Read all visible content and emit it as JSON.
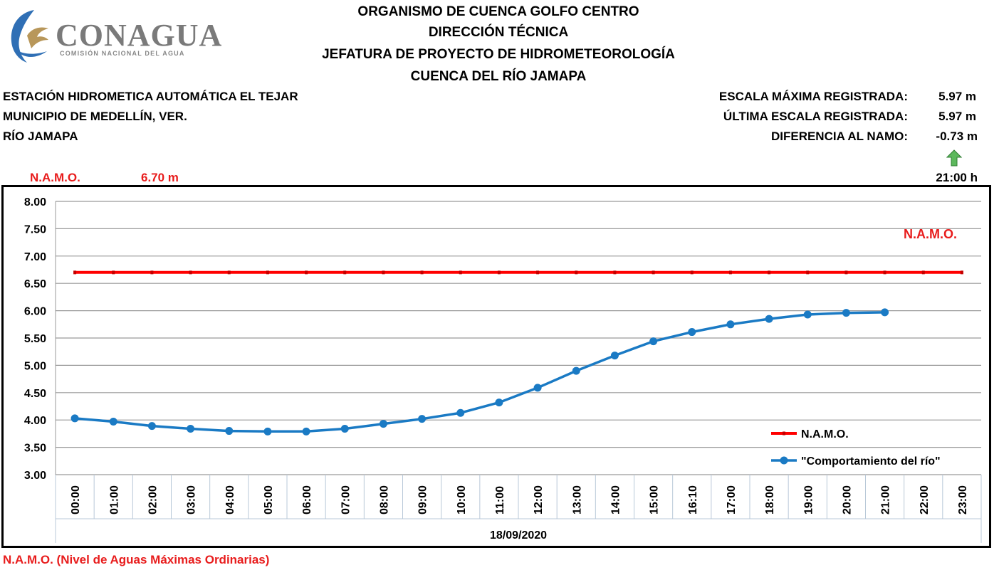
{
  "logo": {
    "name": "CONAGUA",
    "subtitle": "COMISIÓN NACIONAL DEL AGUA"
  },
  "header": {
    "line1": "ORGANISMO DE CUENCA GOLFO CENTRO",
    "line2": "DIRECCIÓN TÉCNICA",
    "line3": "JEFATURA DE PROYECTO DE HIDROMETEOROLOGÍA",
    "line4": "CUENCA DEL RÍO JAMAPA"
  },
  "station": {
    "name": "ESTACIÓN HIDROMETICA AUTOMÁTICA EL TEJAR",
    "municipality": "MUNICIPIO DE MEDELLÍN, VER.",
    "river": "RÍO JAMAPA"
  },
  "stats": {
    "max_label": "ESCALA MÁXIMA REGISTRADA:",
    "max_value": "5.97 m",
    "last_label": "ÚLTIMA ESCALA REGISTRADA:",
    "last_value": "5.97 m",
    "diff_label": "DIFERENCIA AL NAMO:",
    "diff_value": "-0.73 m",
    "trend_icon": "up-arrow-icon",
    "trend_color": "#5cb85c",
    "time": "21:00 h"
  },
  "namo": {
    "label": "N.A.M.O.",
    "value": "6.70 m"
  },
  "footer": {
    "note": "N.A.M.O. (Nivel de Aguas Máximas Ordinarias)"
  },
  "chart_data": {
    "type": "line",
    "categories": [
      "00:00",
      "01:00",
      "02:00",
      "03:00",
      "04:00",
      "05:00",
      "06:00",
      "07:00",
      "08:00",
      "09:00",
      "10:00",
      "11:00",
      "12:00",
      "13:00",
      "14:00",
      "15:00",
      "16:10",
      "17:00",
      "18:00",
      "19:00",
      "20:00",
      "21:00",
      "22:00",
      "23:00"
    ],
    "series": [
      {
        "name": "N.A.M.O.",
        "color": "#ff0000",
        "values": [
          6.7,
          6.7,
          6.7,
          6.7,
          6.7,
          6.7,
          6.7,
          6.7,
          6.7,
          6.7,
          6.7,
          6.7,
          6.7,
          6.7,
          6.7,
          6.7,
          6.7,
          6.7,
          6.7,
          6.7,
          6.7,
          6.7,
          6.7,
          6.7
        ]
      },
      {
        "name": "\"Comportamiento del río\"",
        "color": "#1a7ac4",
        "values": [
          4.03,
          3.97,
          3.89,
          3.84,
          3.8,
          3.79,
          3.79,
          3.84,
          3.93,
          4.02,
          4.13,
          4.32,
          4.59,
          4.9,
          5.18,
          5.44,
          5.61,
          5.75,
          5.85,
          5.93,
          5.96,
          5.97,
          null,
          null
        ]
      }
    ],
    "xlabel": "18/09/2020",
    "ylabel": "",
    "ylim": [
      3.0,
      8.0
    ],
    "yticks": [
      "3.00",
      "3.50",
      "4.00",
      "4.50",
      "5.00",
      "5.50",
      "6.00",
      "6.50",
      "7.00",
      "7.50",
      "8.00"
    ],
    "annotation": "N.A.M.O.",
    "grid": true,
    "legend_position": "bottom-right"
  }
}
